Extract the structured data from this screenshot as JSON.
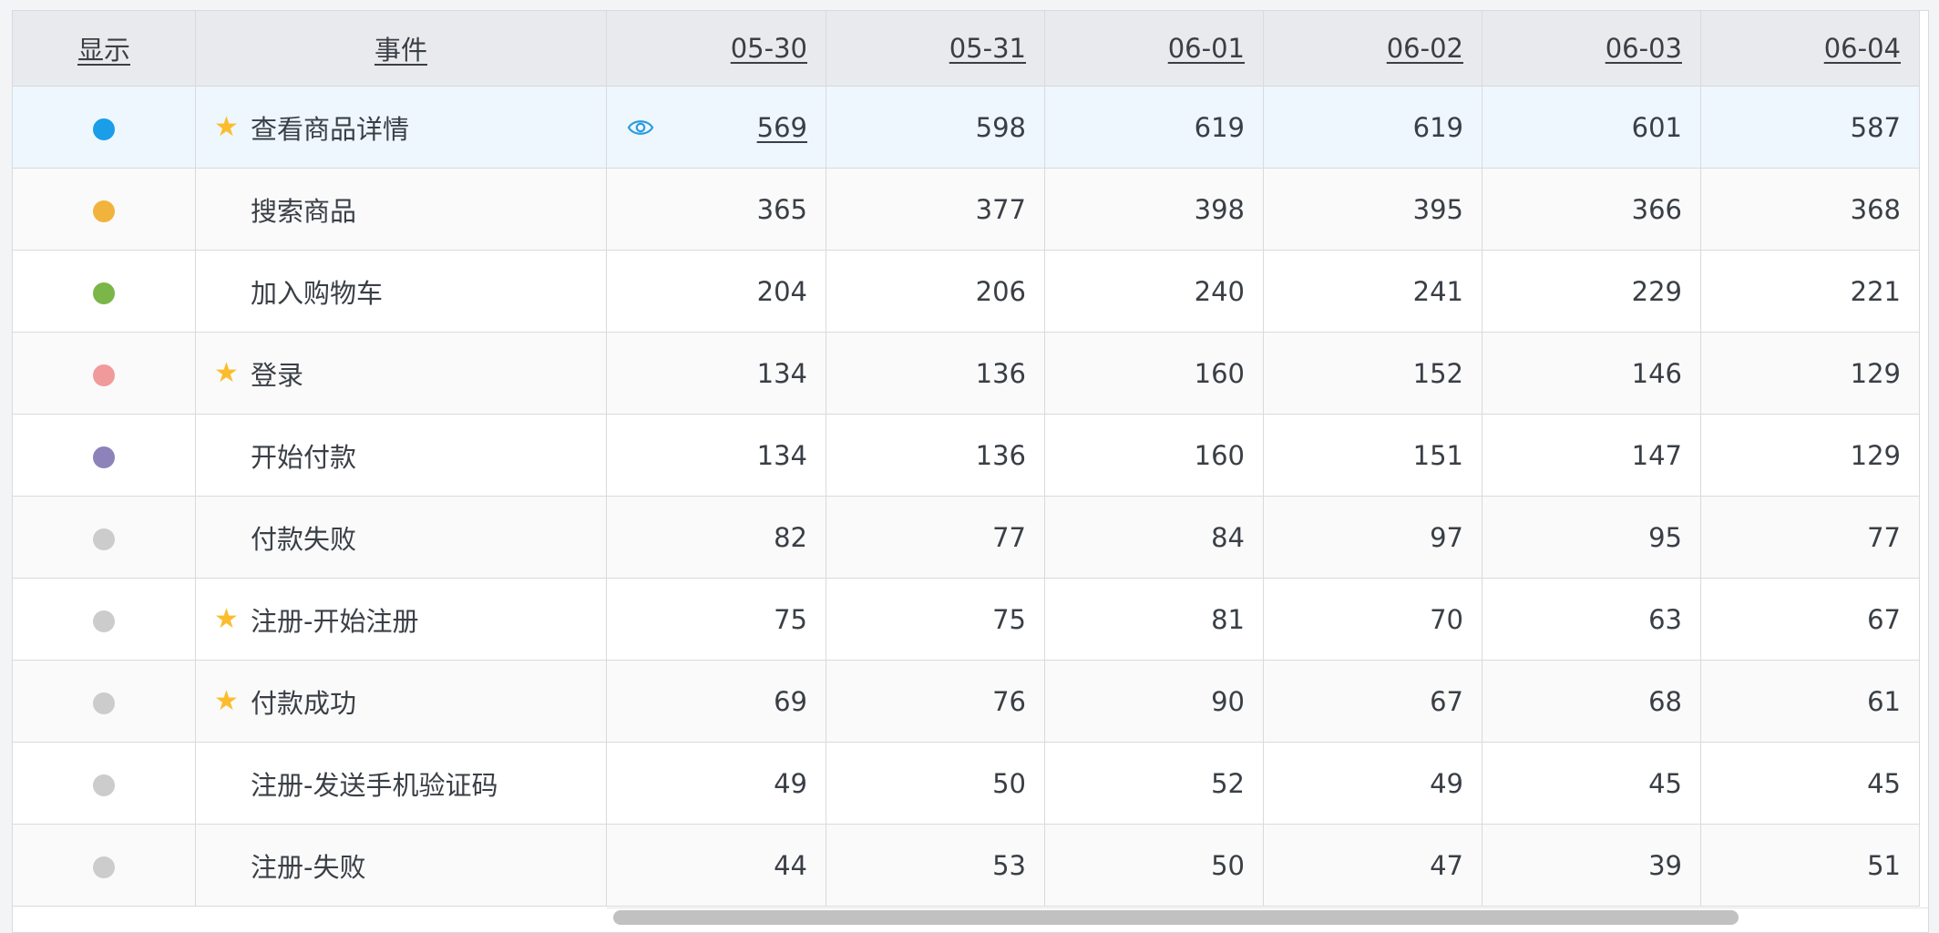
{
  "table": {
    "headers": {
      "show": "显示",
      "event": "事件",
      "dates": [
        "05-30",
        "05-31",
        "06-01",
        "06-02",
        "06-03",
        "06-04"
      ]
    },
    "rows": [
      {
        "color": "#1a9ee8",
        "starred": true,
        "event": "查看商品详情",
        "values": [
          "569",
          "598",
          "619",
          "619",
          "601",
          "587"
        ]
      },
      {
        "color": "#f2b33d",
        "starred": false,
        "event": "搜索商品",
        "values": [
          "365",
          "377",
          "398",
          "395",
          "366",
          "368"
        ]
      },
      {
        "color": "#7ab648",
        "starred": false,
        "event": "加入购物车",
        "values": [
          "204",
          "206",
          "240",
          "241",
          "229",
          "221"
        ]
      },
      {
        "color": "#f09a9c",
        "starred": true,
        "event": "登录",
        "values": [
          "134",
          "136",
          "160",
          "152",
          "146",
          "129"
        ]
      },
      {
        "color": "#8d82ba",
        "starred": false,
        "event": "开始付款",
        "values": [
          "134",
          "136",
          "160",
          "151",
          "147",
          "129"
        ]
      },
      {
        "color": "#cccccc",
        "starred": false,
        "event": "付款失败",
        "values": [
          "82",
          "77",
          "84",
          "97",
          "95",
          "77"
        ]
      },
      {
        "color": "#cccccc",
        "starred": true,
        "event": "注册-开始注册",
        "values": [
          "75",
          "75",
          "81",
          "70",
          "63",
          "67"
        ]
      },
      {
        "color": "#cccccc",
        "starred": true,
        "event": "付款成功",
        "values": [
          "69",
          "76",
          "90",
          "67",
          "68",
          "61"
        ]
      },
      {
        "color": "#cccccc",
        "starred": false,
        "event": "注册-发送手机验证码",
        "values": [
          "49",
          "50",
          "52",
          "49",
          "45",
          "45"
        ]
      },
      {
        "color": "#cccccc",
        "starred": false,
        "event": "注册-失败",
        "values": [
          "44",
          "53",
          "50",
          "47",
          "39",
          "51"
        ]
      }
    ]
  },
  "icons": {
    "star": "star-icon",
    "eye": "eye-icon",
    "dot": "dot-icon"
  },
  "colors": {
    "star": "#fbbd2e",
    "highlight_row": "#eef7fd",
    "eye": "#2a9be0"
  }
}
